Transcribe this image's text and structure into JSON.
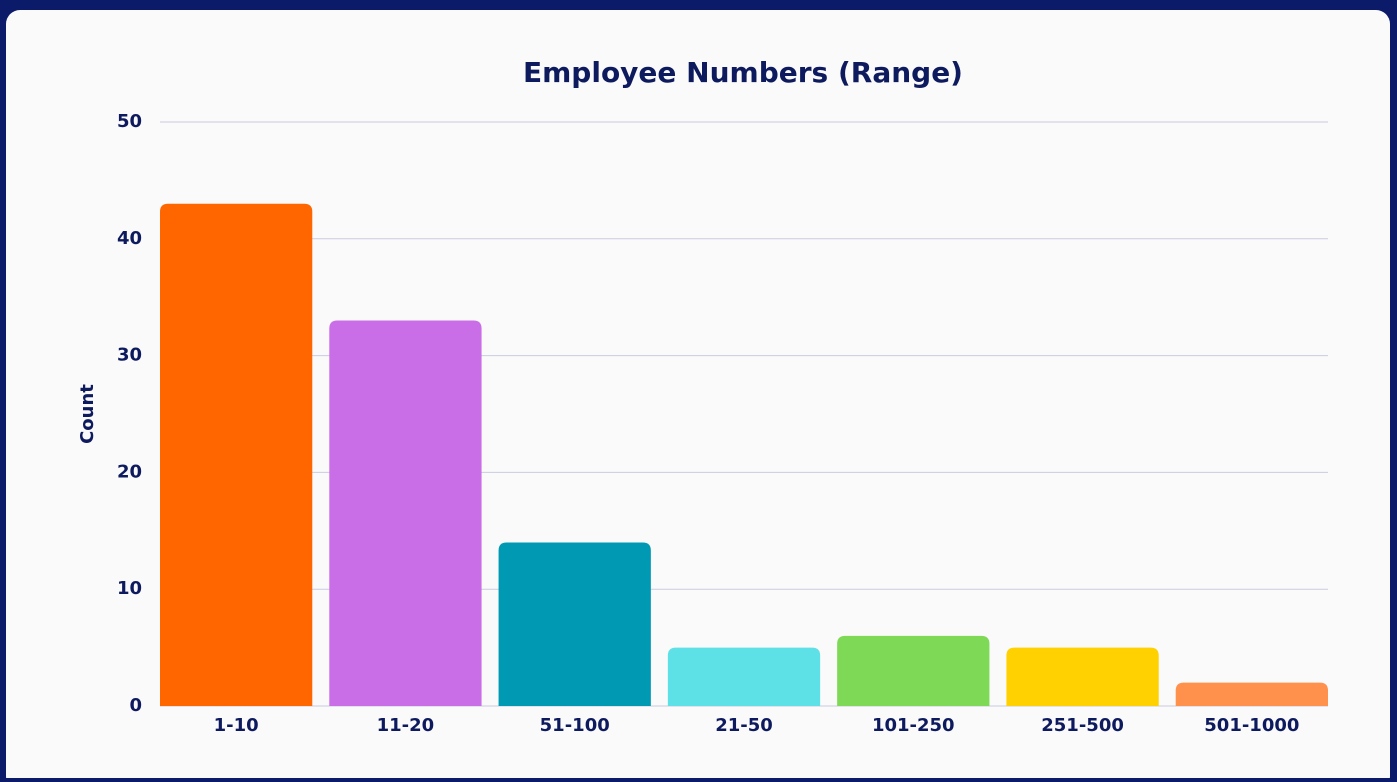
{
  "chart_data": {
    "type": "bar",
    "title": "Employee Numbers (Range)",
    "y_label": "Count",
    "categories": [
      "1-10",
      "11-20",
      "51-100",
      "21-50",
      "101-250",
      "251-500",
      "501-1000"
    ],
    "values": [
      43,
      33,
      14,
      5,
      6,
      5,
      2
    ],
    "colors": [
      "#ff6600",
      "#c96ee6",
      "#0099b3",
      "#5de0e6",
      "#7ed957",
      "#ffd100",
      "#ff914d"
    ],
    "ylim": [
      0,
      50
    ],
    "yticks": [
      0,
      10,
      20,
      30,
      40,
      50
    ],
    "grid": true
  }
}
